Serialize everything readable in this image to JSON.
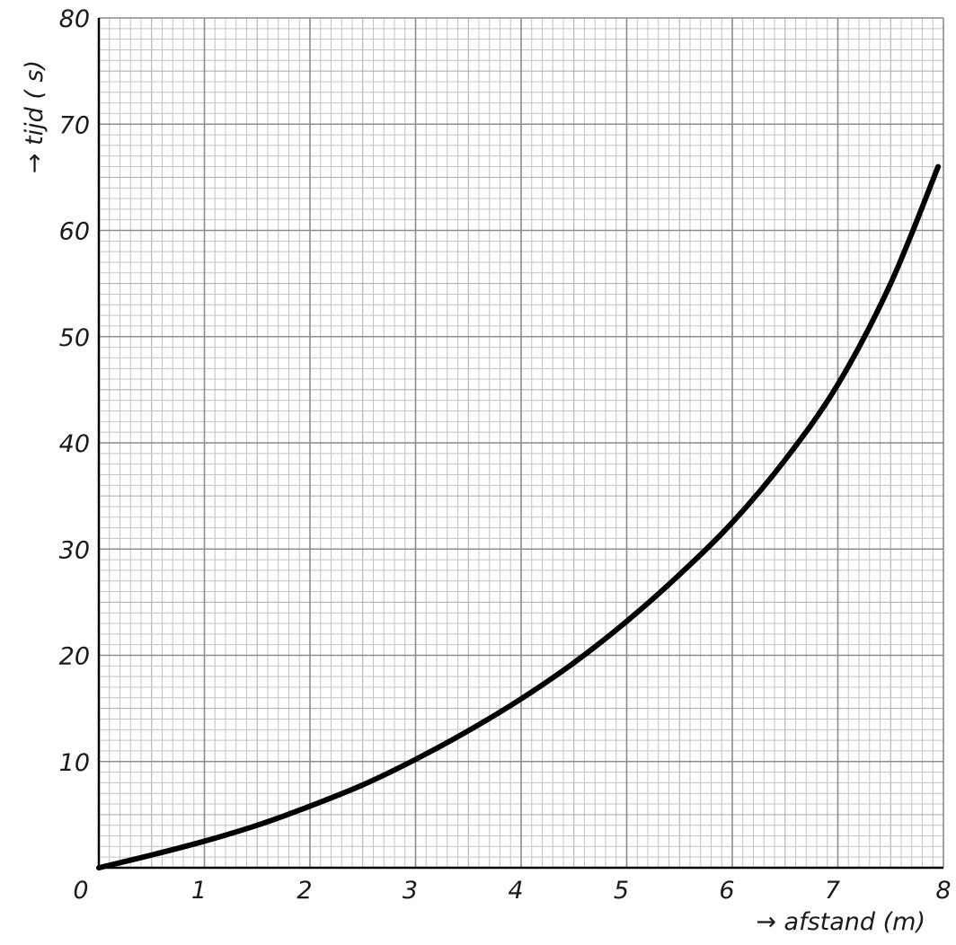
{
  "chart_data": {
    "type": "line",
    "title": "",
    "xlabel": "→ afstand (m)",
    "ylabel": "→ tijd ( s)",
    "xlim": [
      0,
      8
    ],
    "ylim": [
      0,
      80
    ],
    "x_ticks": [
      "0",
      "1",
      "2",
      "3",
      "4",
      "5",
      "6",
      "7",
      "8"
    ],
    "y_ticks": [
      "10",
      "20",
      "30",
      "40",
      "50",
      "60",
      "70",
      "80"
    ],
    "grid": true,
    "legend": "none",
    "colors": {
      "line": "#000000",
      "grid_major": "#8c8c8c",
      "grid_minor": "#c4c4c4",
      "axis": "#000000"
    },
    "series": [
      {
        "x": [
          0,
          0.5,
          1,
          1.5,
          2,
          2.5,
          3,
          3.5,
          4,
          4.5,
          5,
          5.5,
          6,
          6.5,
          7,
          7.5,
          7.95
        ],
        "y": [
          0,
          1.2,
          2.5,
          4.0,
          5.8,
          7.8,
          10.2,
          12.9,
          15.9,
          19.3,
          23.2,
          27.6,
          32.5,
          38.4,
          45.5,
          55.0,
          66.0
        ]
      }
    ]
  }
}
